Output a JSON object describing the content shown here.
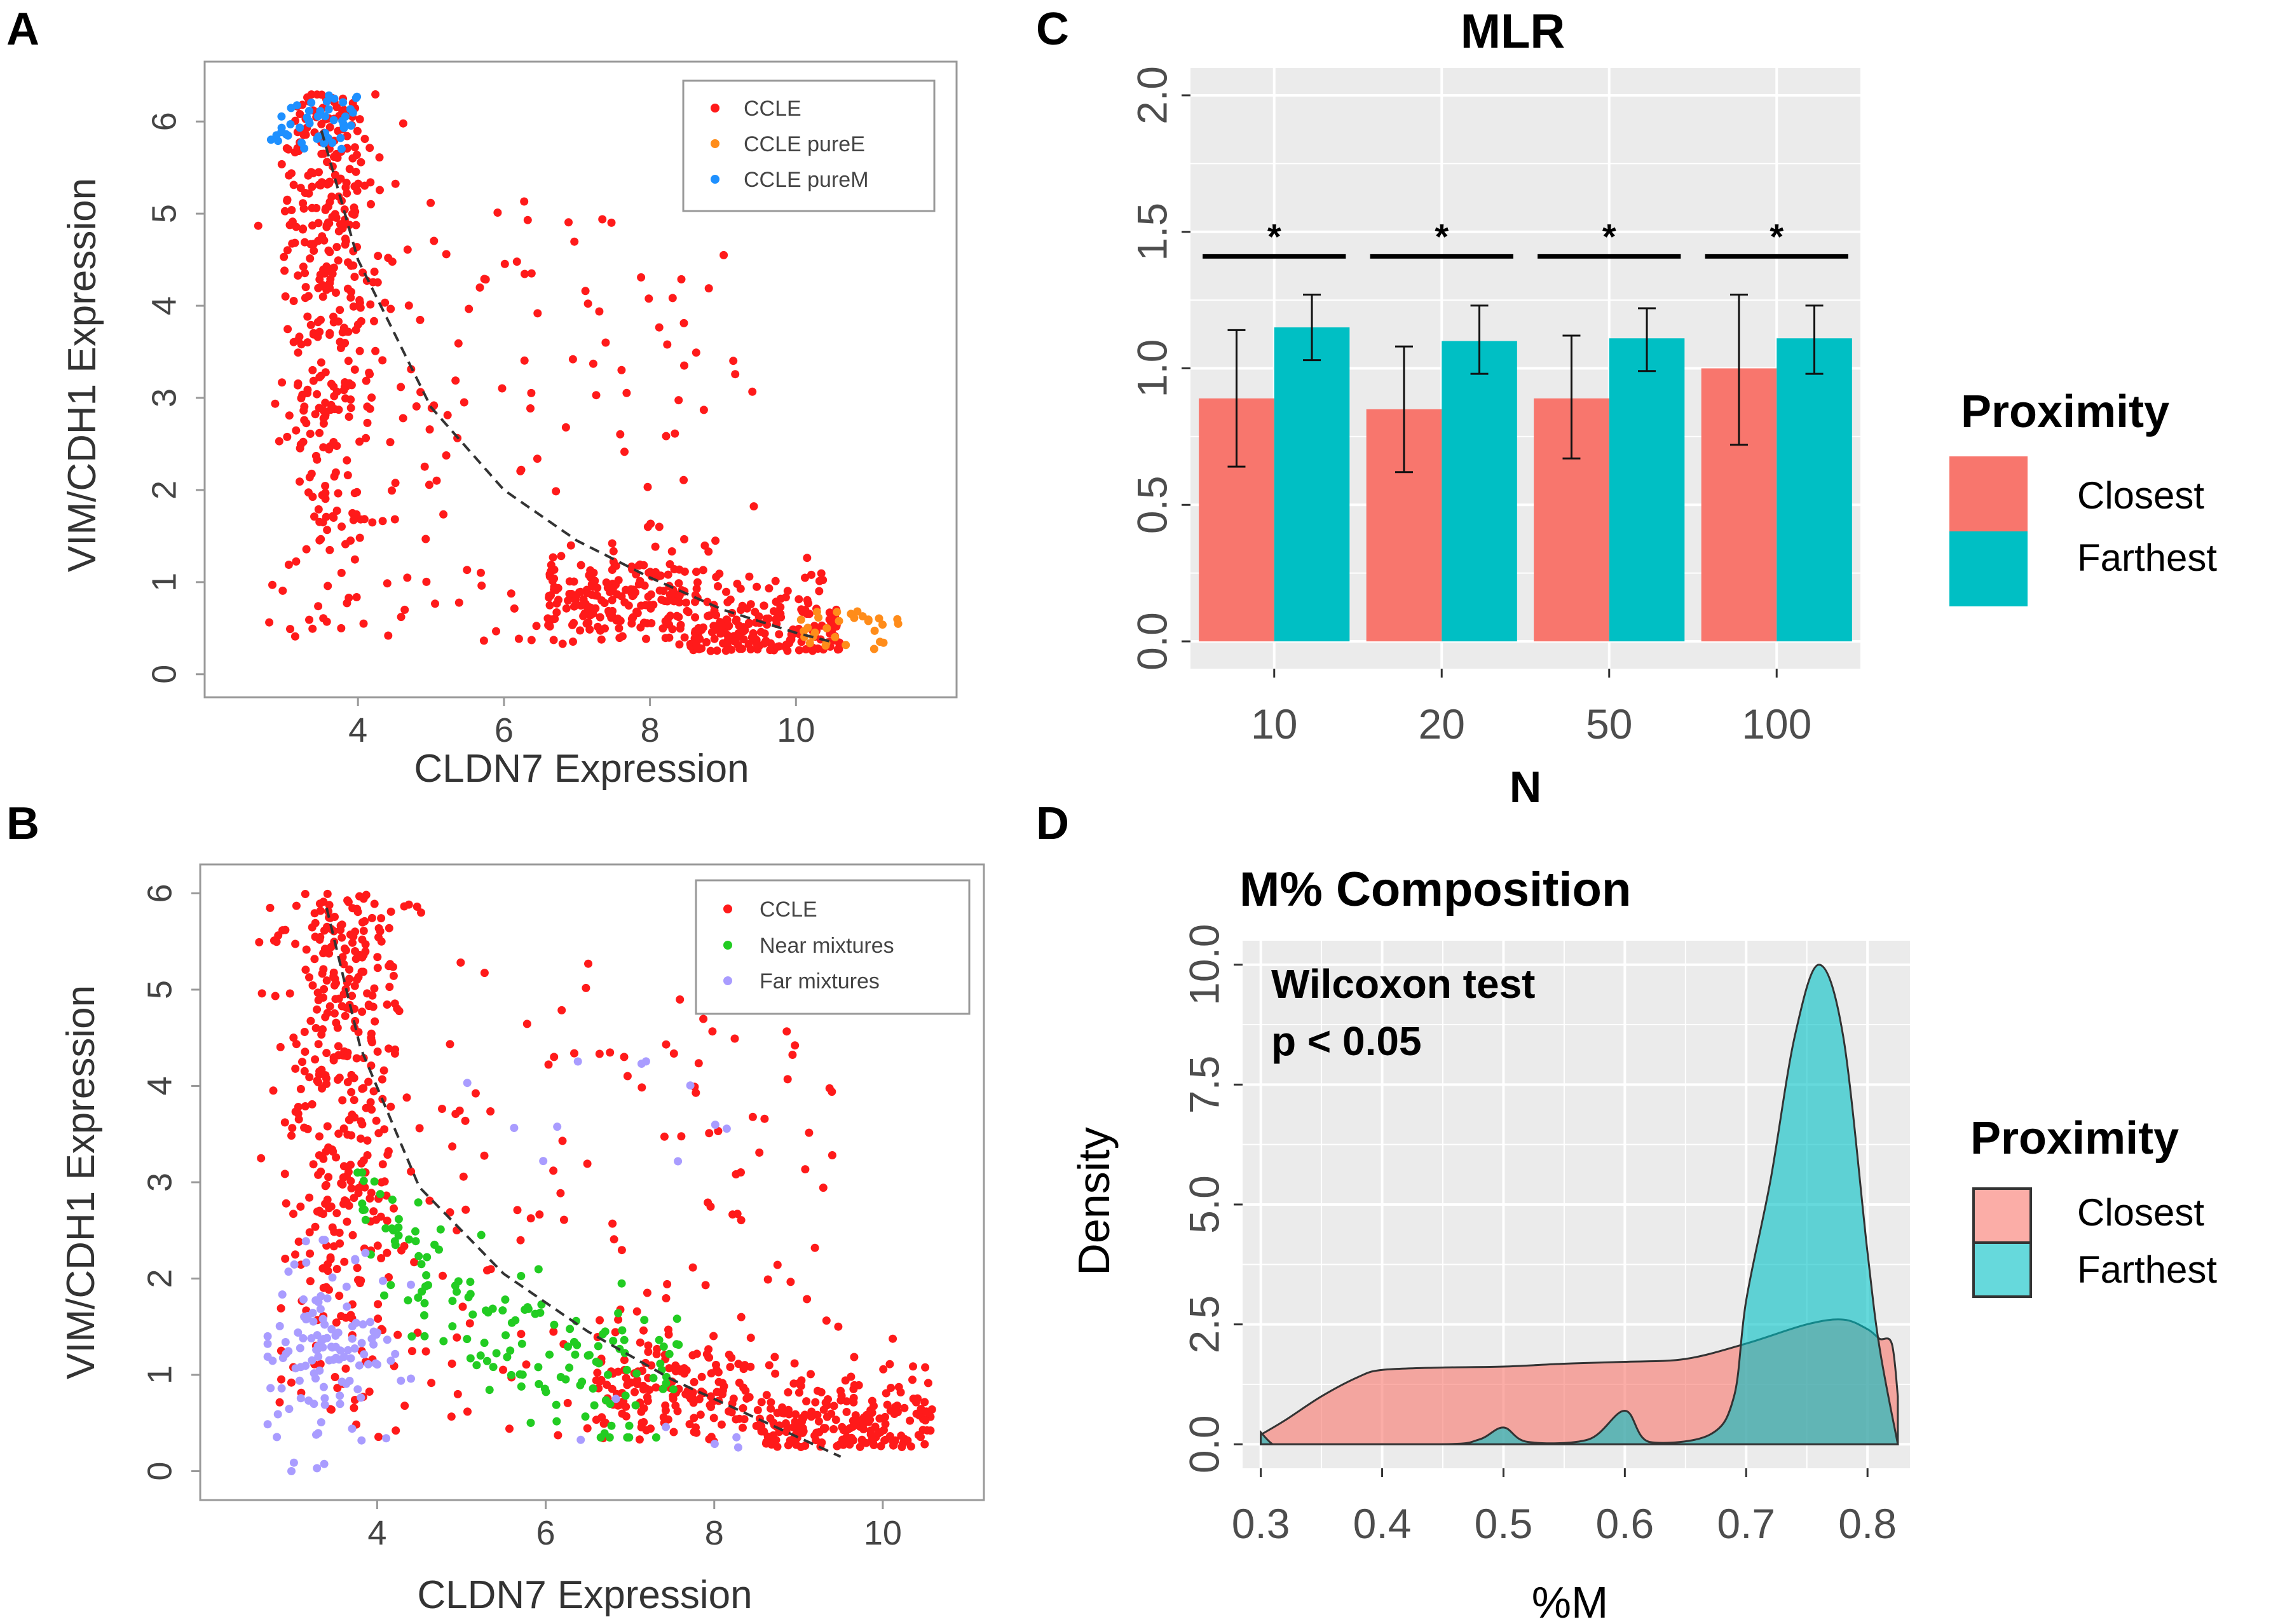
{
  "figure_labels": {
    "a": "A",
    "b": "B",
    "c": "C",
    "d": "D"
  },
  "colors": {
    "ccle": "#ff1a1a",
    "pureE": "#ff8c1a",
    "pureM": "#1e90ff",
    "near": "#22cc22",
    "far": "#a99cff",
    "closest": "#f8766d",
    "farthest": "#00bfc4",
    "gg_panel": "#ebebeb"
  },
  "chart_data": [
    {
      "panel": "A",
      "type": "scatter",
      "xlabel": "CLDN7 Expression",
      "ylabel": "VIM/CDH1 Expression",
      "xlim": [
        1.9,
        12.2
      ],
      "ylim": [
        -0.25,
        6.65
      ],
      "xticks": [
        "4",
        "6",
        "8",
        "10"
      ],
      "yticks": [
        "0",
        "1",
        "2",
        "3",
        "4",
        "5",
        "6"
      ],
      "legend": [
        "CCLE",
        "CCLE pureE",
        "CCLE pureM"
      ],
      "legend_position": "top-right",
      "trend_curve": {
        "style": "dashed",
        "x": [
          3.5,
          4.0,
          5.0,
          6.0,
          7.0,
          8.0,
          9.0,
          10.0,
          10.5
        ],
        "y": [
          5.9,
          4.5,
          2.9,
          2.0,
          1.45,
          1.05,
          0.7,
          0.45,
          0.35
        ]
      },
      "series": [
        {
          "name": "CCLE",
          "note": "approx. 1000 cell lines; dense mesenchymal cluster near CLDN7 3-4.5 (VIM/CDH1 1-6) and epithelial cluster near CLDN7 7-10.5 (VIM/CDH1 0.2-1.5)"
        },
        {
          "name": "CCLE pureE",
          "note": "CLDN7 10-11.5, VIM/CDH1 0.25-0.7"
        },
        {
          "name": "CCLE pureM",
          "note": "CLDN7 2.8-4, VIM/CDH1 5.7-6.3"
        }
      ]
    },
    {
      "panel": "B",
      "type": "scatter",
      "xlabel": "CLDN7 Expression",
      "ylabel": "VIM/CDH1 Expression",
      "xlim": [
        1.9,
        11.2
      ],
      "ylim": [
        -0.3,
        6.3
      ],
      "xticks": [
        "4",
        "6",
        "8",
        "10"
      ],
      "yticks": [
        "0",
        "1",
        "2",
        "3",
        "4",
        "5",
        "6"
      ],
      "legend": [
        "CCLE",
        "Near mixtures",
        "Far mixtures"
      ],
      "legend_position": "top-right",
      "trend_curve": {
        "style": "dashed",
        "x": [
          3.4,
          3.8,
          4.5,
          5.5,
          6.5,
          7.5,
          8.5,
          9.5
        ],
        "y": [
          5.85,
          4.4,
          2.95,
          2.05,
          1.45,
          0.95,
          0.55,
          0.15
        ]
      },
      "series": [
        {
          "name": "CCLE",
          "note": "same CCLE cloud as panel A"
        },
        {
          "name": "Near mixtures",
          "note": "approx. 150 points along the curve, CLDN7 3.7-7.6, VIM/CDH1 0.4-3"
        },
        {
          "name": "Far mixtures",
          "note": "approx. 150 points, mostly CLDN7 2.7-4.3, VIM/CDH1 0-2.4, plus outliers up to (7.4, 4.8)"
        }
      ]
    },
    {
      "panel": "C",
      "type": "bar",
      "title": "MLR",
      "xlabel": "N",
      "ylabel": "",
      "categories": [
        "10",
        "20",
        "50",
        "100"
      ],
      "ylim": [
        -0.1,
        2.1
      ],
      "yticks": [
        "0.0",
        "0.5",
        "1.0",
        "1.5",
        "2.0"
      ],
      "series": [
        {
          "name": "Closest",
          "values": [
            0.89,
            0.85,
            0.89,
            1.0
          ],
          "err_low": [
            0.64,
            0.62,
            0.67,
            0.72
          ],
          "err_high": [
            1.14,
            1.08,
            1.12,
            1.27
          ]
        },
        {
          "name": "Farthest",
          "values": [
            1.15,
            1.1,
            1.11,
            1.11
          ],
          "err_low": [
            1.03,
            0.98,
            0.99,
            0.98
          ],
          "err_high": [
            1.27,
            1.23,
            1.22,
            1.23
          ]
        }
      ],
      "significance": {
        "marker": "*",
        "bracket_y": 1.41
      },
      "legend": {
        "title": "Proximity",
        "items": [
          "Closest",
          "Farthest"
        ]
      }
    },
    {
      "panel": "D",
      "type": "area",
      "title": "M% Composition",
      "xlabel": "%M",
      "ylabel": "Density",
      "xlim": [
        0.285,
        0.835
      ],
      "ylim": [
        -0.5,
        10.5
      ],
      "xticks": [
        "0.3",
        "0.4",
        "0.5",
        "0.6",
        "0.7",
        "0.8"
      ],
      "yticks": [
        "0.0",
        "2.5",
        "5.0",
        "7.5",
        "10.0"
      ],
      "annotation": [
        "Wilcoxon test",
        "p < 0.05"
      ],
      "series": [
        {
          "name": "Closest",
          "x": [
            0.3,
            0.32,
            0.35,
            0.38,
            0.4,
            0.45,
            0.5,
            0.55,
            0.6,
            0.65,
            0.7,
            0.75,
            0.78,
            0.8,
            0.81,
            0.82,
            0.825
          ],
          "y": [
            0.2,
            0.5,
            1.0,
            1.4,
            1.55,
            1.6,
            1.62,
            1.68,
            1.72,
            1.78,
            2.1,
            2.5,
            2.6,
            2.4,
            2.2,
            2.1,
            1.0
          ]
        },
        {
          "name": "Farthest",
          "x": [
            0.3,
            0.31,
            0.32,
            0.45,
            0.48,
            0.5,
            0.52,
            0.57,
            0.6,
            0.62,
            0.67,
            0.69,
            0.7,
            0.72,
            0.74,
            0.76,
            0.78,
            0.8,
            0.81,
            0.825
          ],
          "y": [
            0.25,
            0.0,
            0.0,
            0.0,
            0.1,
            0.35,
            0.05,
            0.1,
            0.7,
            0.05,
            0.2,
            1.0,
            3.0,
            5.5,
            8.5,
            10.0,
            8.5,
            4.0,
            2.0,
            0.0
          ]
        }
      ],
      "legend": {
        "title": "Proximity",
        "items": [
          "Closest",
          "Farthest"
        ]
      }
    }
  ]
}
